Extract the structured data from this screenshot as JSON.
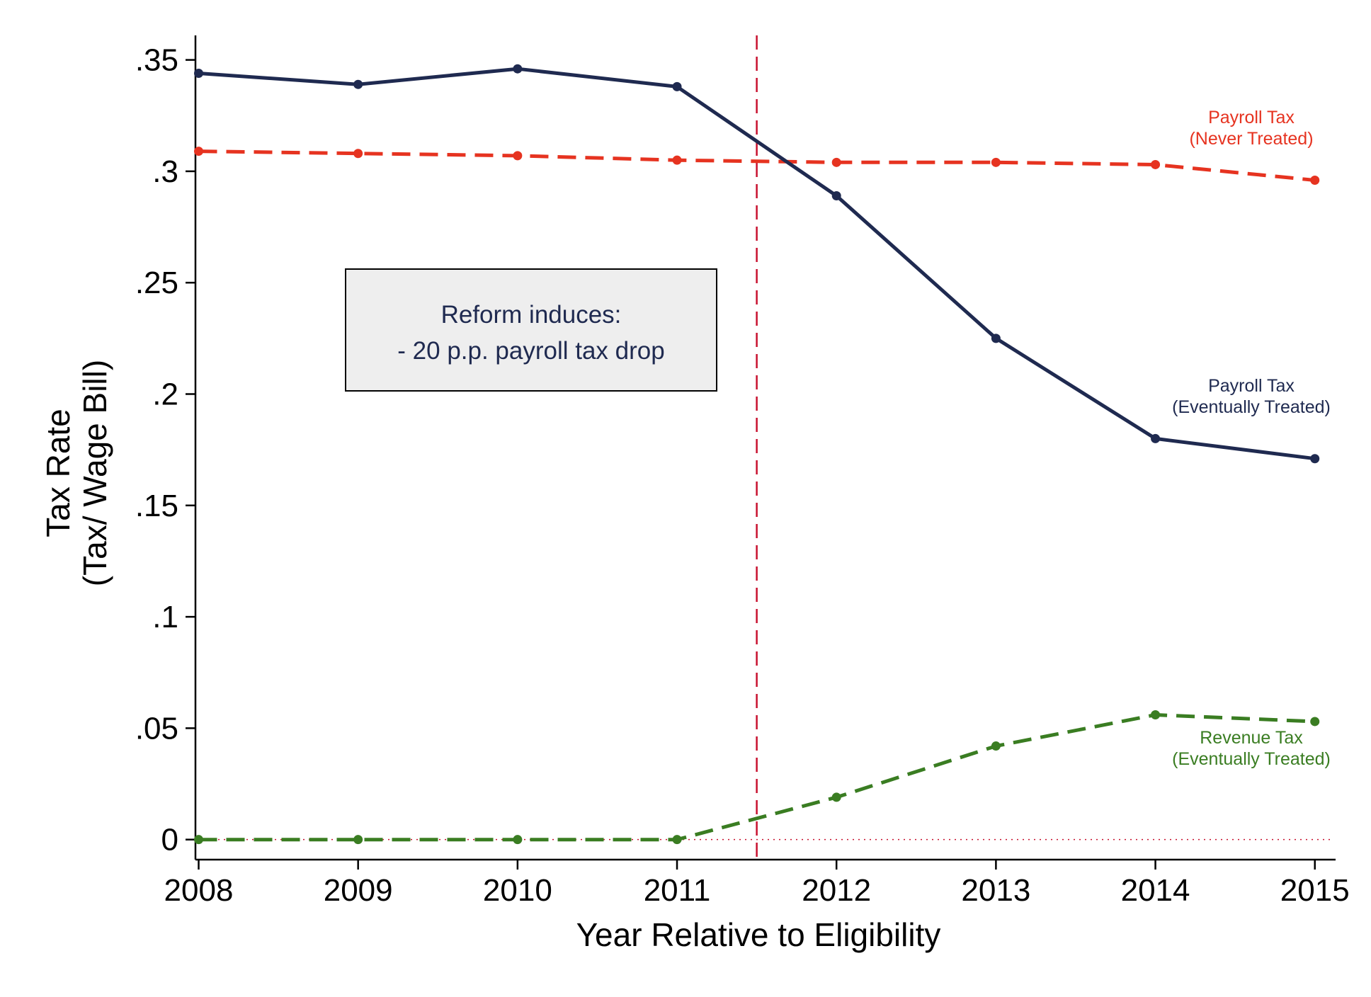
{
  "chart_data": {
    "type": "line",
    "title": "",
    "xlabel": "Year Relative to Eligibility",
    "ylabel_lines": [
      "Tax Rate",
      "(Tax/ Wage Bill)"
    ],
    "x": [
      2008,
      2009,
      2010,
      2011,
      2012,
      2013,
      2014,
      2015
    ],
    "x_tick_labels": [
      "2008",
      "2009",
      "2010",
      "2011",
      "2012",
      "2013",
      "2014",
      "2015"
    ],
    "xlim": [
      2007.98,
      2015.13
    ],
    "ylim": [
      -0.009,
      0.361
    ],
    "y_ticks": [
      0,
      0.05,
      0.1,
      0.15,
      0.2,
      0.25,
      0.3,
      0.35
    ],
    "y_tick_labels": [
      "0",
      ".05",
      ".1",
      ".15",
      ".2",
      ".25",
      ".3",
      ".35"
    ],
    "grid": false,
    "legend": "none",
    "event_line": {
      "x": 2011.5,
      "color": "#c8102e",
      "style": "dashed"
    },
    "zero_line": {
      "y": 0,
      "color": "#c8102e",
      "style": "dotted"
    },
    "series": [
      {
        "key": "payroll_never",
        "label_lines": [
          "Payroll Tax",
          "(Never Treated)"
        ],
        "color": "#e63320",
        "style": "dashed",
        "values": [
          0.309,
          0.308,
          0.307,
          0.305,
          0.304,
          0.304,
          0.303,
          0.296
        ]
      },
      {
        "key": "payroll_eventually",
        "label_lines": [
          "Payroll Tax",
          "(Eventually Treated)"
        ],
        "color": "#1f2a50",
        "style": "solid",
        "values": [
          0.344,
          0.339,
          0.346,
          0.338,
          0.289,
          0.225,
          0.18,
          0.171
        ]
      },
      {
        "key": "revenue_eventually",
        "label_lines": [
          "Revenue Tax",
          "(Eventually Treated)"
        ],
        "color": "#3a7d22",
        "style": "dashed",
        "values": [
          0.0,
          0.0,
          0.0,
          0.0,
          0.019,
          0.042,
          0.056,
          0.053
        ]
      }
    ],
    "annotation_box": {
      "lines": [
        "Reform induces:",
        "- 20 p.p. payroll tax drop"
      ]
    }
  }
}
